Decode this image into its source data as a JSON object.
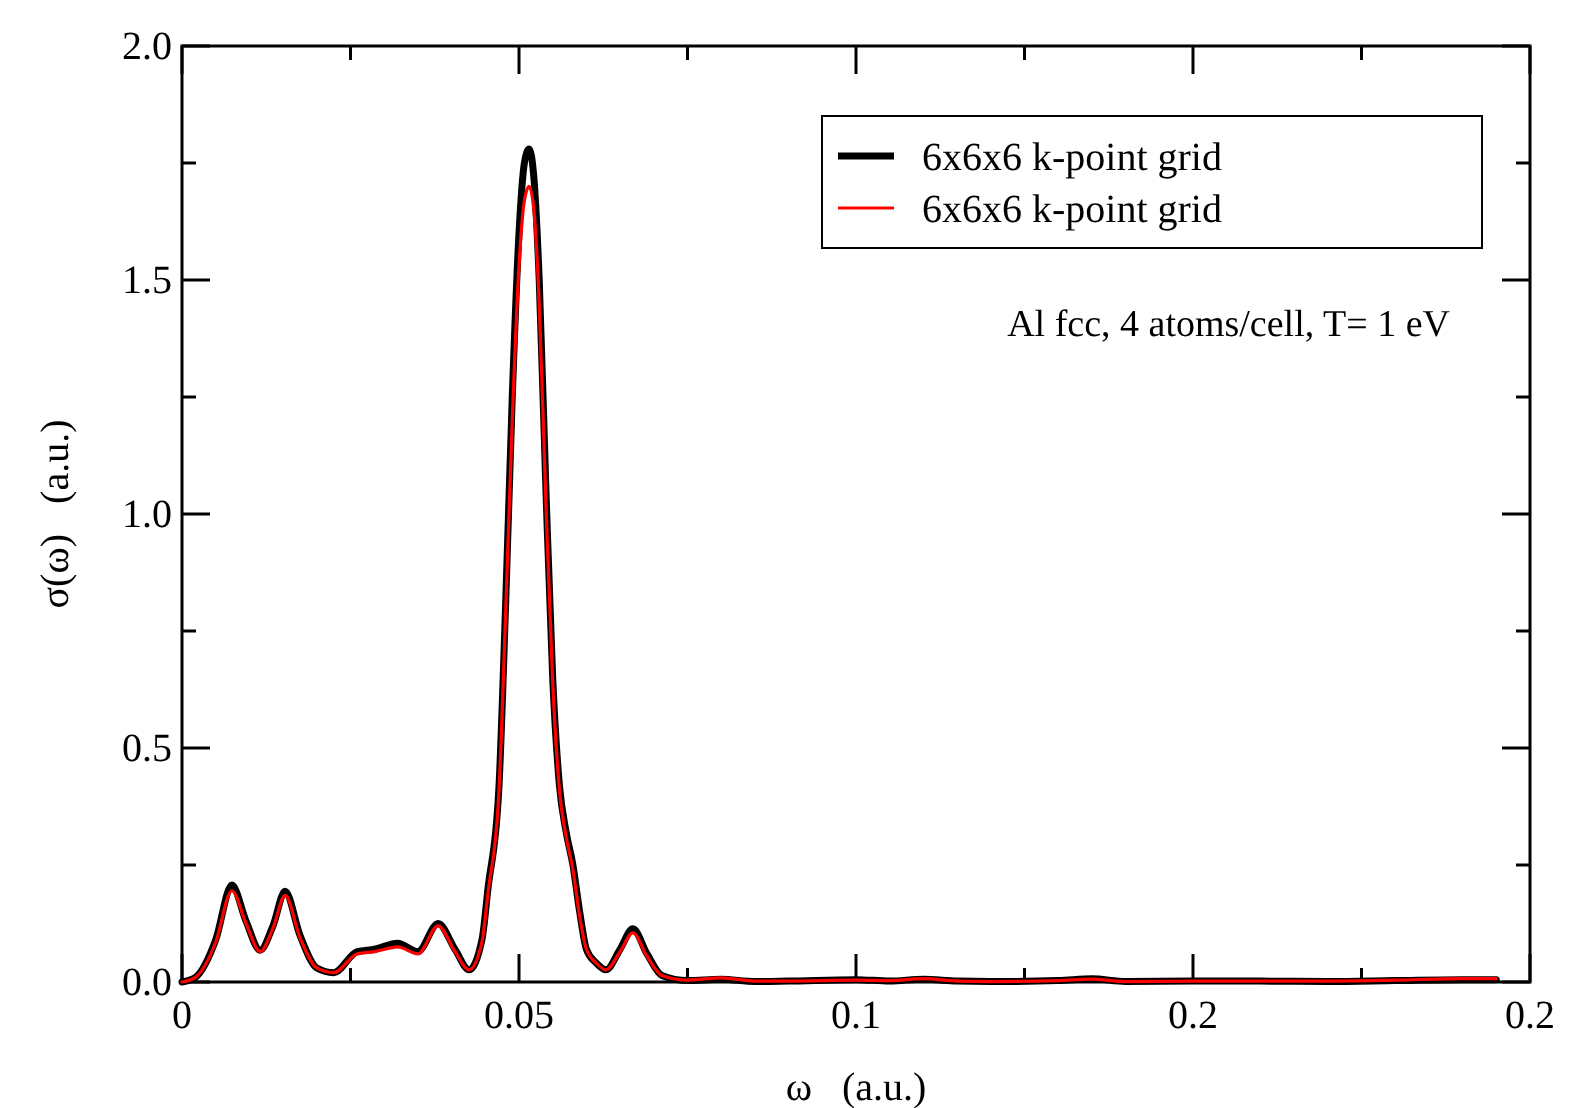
{
  "chart_data": {
    "type": "line",
    "xlabel": "ω   (a.u.)",
    "ylabel": "σ(ω)   (a.u.)",
    "annotations": [
      "Al fcc, 4 atoms/cell, T= 1 eV"
    ],
    "xlim": [
      0,
      0.2
    ],
    "ylim": [
      0,
      2.0
    ],
    "xticks": [
      0,
      {
        "value": 0.025,
        "label": null
      },
      0.05,
      {
        "value": 0.075,
        "label": null
      },
      0.1,
      {
        "value": 0.125,
        "label": null
      },
      {
        "value": 0.15,
        "label": "0.2"
      },
      {
        "value": 0.175,
        "label": null
      },
      {
        "value": 0.2,
        "label": "0.2"
      }
    ],
    "yticks": [
      {
        "value": 0,
        "label": "0.0"
      },
      {
        "value": 0.25,
        "label": null
      },
      0.5,
      {
        "value": 0.75,
        "label": null
      },
      {
        "value": 1,
        "label": "1.0"
      },
      {
        "value": 1.25,
        "label": null
      },
      1.5,
      {
        "value": 1.75,
        "label": null
      },
      {
        "value": 2,
        "label": "2.0"
      }
    ],
    "grid": false,
    "legend": "top right",
    "marker": "none",
    "line_style": "solid",
    "series": [
      {
        "name": "6x6x6 k-point grid",
        "color": "#000000",
        "x": [
          0,
          0.002,
          0.005,
          0.0074,
          0.0095,
          0.0116,
          0.0135,
          0.0153,
          0.0175,
          0.02,
          0.0225,
          0.026,
          0.0286,
          0.032,
          0.035,
          0.038,
          0.0405,
          0.0426,
          0.0445,
          0.0454,
          0.047,
          0.048,
          0.049,
          0.05,
          0.0508,
          0.0515,
          0.0522,
          0.053,
          0.054,
          0.055,
          0.056,
          0.057,
          0.058,
          0.059,
          0.06,
          0.0615,
          0.0629,
          0.065,
          0.0669,
          0.069,
          0.0712,
          0.075,
          0.08,
          0.085,
          0.09,
          0.1,
          0.105,
          0.11,
          0.115,
          0.12,
          0.13,
          0.135,
          0.14,
          0.15,
          0.16,
          0.17,
          0.18,
          0.19,
          0.195
        ],
        "values": [
          0,
          0.01,
          0.09,
          0.207,
          0.13,
          0.068,
          0.12,
          0.194,
          0.1,
          0.03,
          0.02,
          0.065,
          0.07,
          0.083,
          0.065,
          0.125,
          0.07,
          0.026,
          0.09,
          0.2,
          0.41,
          0.8,
          1.25,
          1.6,
          1.75,
          1.78,
          1.72,
          1.5,
          1.05,
          0.65,
          0.42,
          0.32,
          0.25,
          0.15,
          0.07,
          0.04,
          0.026,
          0.07,
          0.114,
          0.06,
          0.014,
          0.003,
          0.006,
          0.001,
          0.002,
          0.005,
          0.002,
          0.006,
          0.002,
          0.001,
          0.003,
          0.007,
          0.001,
          0.002,
          0.002,
          0.001,
          0.003,
          0.005,
          0.005
        ]
      },
      {
        "name": "6x6x6 k-point grid",
        "color": "#ff0000",
        "x": [
          0,
          0.002,
          0.005,
          0.0074,
          0.0095,
          0.0116,
          0.0135,
          0.0153,
          0.0175,
          0.02,
          0.0225,
          0.026,
          0.0286,
          0.032,
          0.035,
          0.038,
          0.0405,
          0.0426,
          0.0445,
          0.0454,
          0.047,
          0.048,
          0.049,
          0.05,
          0.0508,
          0.0515,
          0.0522,
          0.053,
          0.054,
          0.055,
          0.056,
          0.057,
          0.058,
          0.059,
          0.06,
          0.0615,
          0.0629,
          0.065,
          0.0669,
          0.069,
          0.0712,
          0.075,
          0.08,
          0.085,
          0.09,
          0.1,
          0.105,
          0.11,
          0.115,
          0.12,
          0.13,
          0.135,
          0.14,
          0.15,
          0.16,
          0.17,
          0.18,
          0.19,
          0.195
        ],
        "values": [
          0,
          0.01,
          0.085,
          0.195,
          0.125,
          0.065,
          0.115,
          0.185,
          0.095,
          0.03,
          0.02,
          0.06,
          0.065,
          0.075,
          0.06,
          0.12,
          0.065,
          0.026,
          0.085,
          0.19,
          0.4,
          0.78,
          1.2,
          1.53,
          1.67,
          1.7,
          1.65,
          1.45,
          1.02,
          0.64,
          0.41,
          0.31,
          0.24,
          0.14,
          0.07,
          0.04,
          0.026,
          0.065,
          0.105,
          0.055,
          0.014,
          0.004,
          0.009,
          0.002,
          0.002,
          0.004,
          0.003,
          0.007,
          0.002,
          0.001,
          0.003,
          0.006,
          0.001,
          0.002,
          0.002,
          0.002,
          0.004,
          0.007,
          0.007
        ]
      }
    ]
  }
}
